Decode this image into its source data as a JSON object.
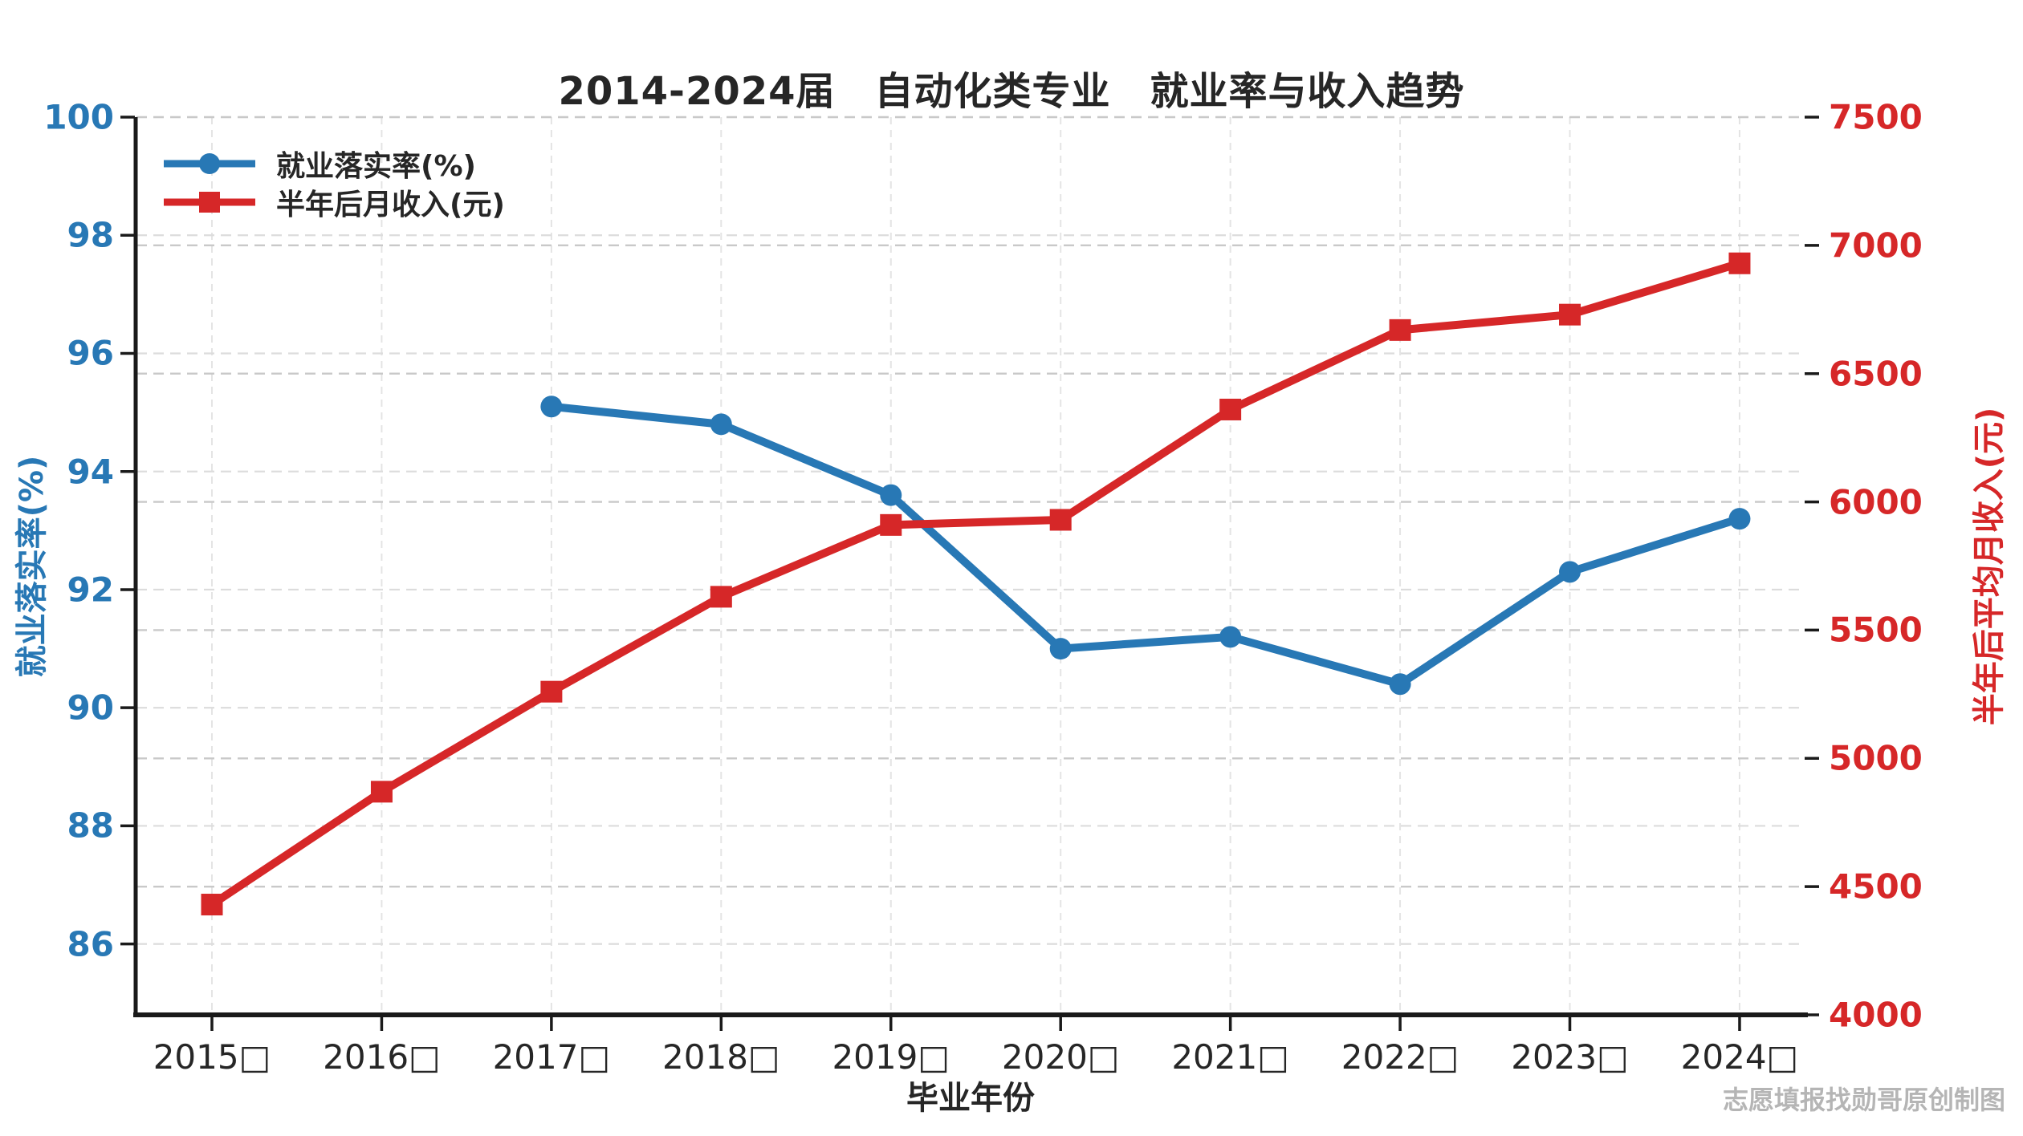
{
  "title": "2014-2024届　自动化类专业　就业率与收入趋势",
  "watermark": "志愿填报找勋哥原创制图",
  "colors": {
    "employment_blue": "#2878b5",
    "income_red": "#d62728",
    "grid_light": "#dcdcdc",
    "grid_dark": "#c9c9c9",
    "axis_dark": "#1a1a1a",
    "text_dark": "#262626",
    "watermark_gray": "#b5b5b5"
  },
  "chart_data": {
    "type": "line",
    "title": "2014-2024届　自动化类专业　就业率与收入趋势",
    "xlabel": "毕业年份",
    "x": [
      2015,
      2016,
      2017,
      2018,
      2019,
      2020,
      2021,
      2022,
      2023,
      2024
    ],
    "x_tick_labels": [
      "2015□",
      "2016□",
      "2017□",
      "2018□",
      "2019□",
      "2020□",
      "2021□",
      "2022□",
      "2023□",
      "2024□"
    ],
    "grid": true,
    "legend_position": "upper-left",
    "left_axis": {
      "label": "就业落实率(%)",
      "color": "#2878b5",
      "ticks": [
        100,
        98,
        96,
        94,
        92,
        90,
        88,
        86
      ],
      "range": [
        84.8,
        100
      ]
    },
    "right_axis": {
      "label": "半年后平均月收入(元)",
      "color": "#d62728",
      "ticks": [
        7500,
        7000,
        6500,
        6000,
        5500,
        5000,
        4500,
        4000
      ],
      "range": [
        4000,
        7500
      ]
    },
    "series": [
      {
        "name": "就业落实率(%)",
        "axis": "left",
        "color": "#2878b5",
        "marker": "circle",
        "x": [
          2017,
          2018,
          2019,
          2020,
          2021,
          2022,
          2023,
          2024
        ],
        "values": [
          95.1,
          94.8,
          93.6,
          91.0,
          91.2,
          90.4,
          92.3,
          93.2
        ]
      },
      {
        "name": "半年后月收入(元)",
        "axis": "right",
        "color": "#d62728",
        "marker": "square",
        "x": [
          2015,
          2016,
          2017,
          2018,
          2019,
          2020,
          2021,
          2022,
          2023,
          2024
        ],
        "values": [
          4430,
          4870,
          5260,
          5630,
          5910,
          5930,
          6360,
          6670,
          6730,
          6930
        ]
      }
    ]
  }
}
